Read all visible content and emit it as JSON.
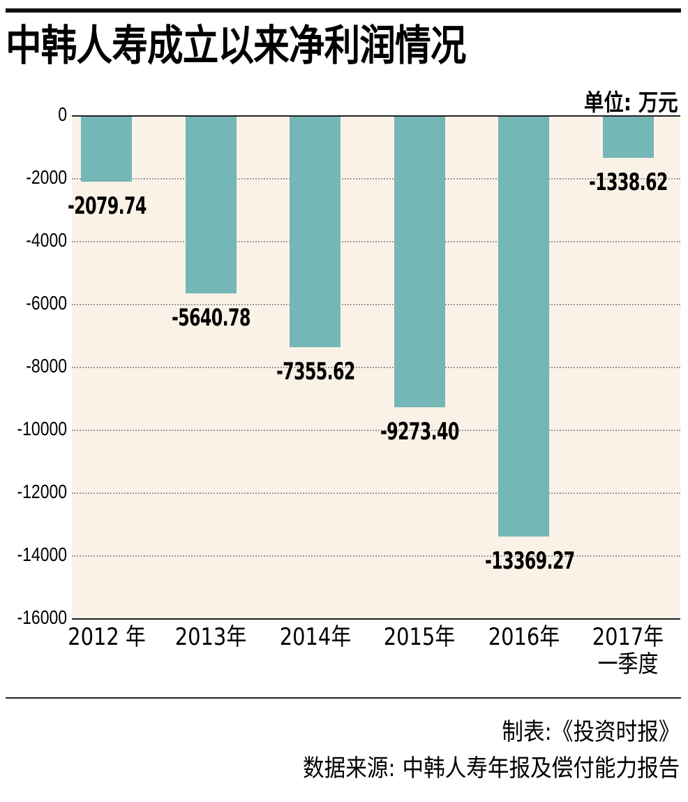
{
  "title": "中韩人寿成立以来净利润情况",
  "unit": "单位: 万元",
  "chart_data": {
    "type": "bar",
    "title": "中韩人寿成立以来净利润情况",
    "ylabel": "单位: 万元",
    "xlabel": "",
    "categories": [
      "2012 年",
      "2013年",
      "2014年",
      "2015年",
      "2016年",
      "2017年一季度"
    ],
    "values": [
      -2079.74,
      -5640.78,
      -7355.62,
      -9273.4,
      -13369.27,
      -1338.62
    ],
    "value_labels": [
      "-2079.74",
      "-5640.78",
      "-7355.62",
      "-9273.40",
      "-13369.27",
      "-1338.62"
    ],
    "ylim": [
      -16000,
      0
    ],
    "yticks": [
      0,
      -2000,
      -4000,
      -6000,
      -8000,
      -10000,
      -12000,
      -14000,
      -16000
    ],
    "grid": "horizontal dotted",
    "legend": "none",
    "bar_color": "#75b7b6",
    "background_color": "#fbf2e7"
  },
  "yticks": [
    "0",
    "-2000",
    "-4000",
    "-6000",
    "-8000",
    "-10000",
    "-12000",
    "-14000",
    "-16000"
  ],
  "xlabels": [
    {
      "line1": "2012 年",
      "line2": ""
    },
    {
      "line1": "2013年",
      "line2": ""
    },
    {
      "line1": "2014年",
      "line2": ""
    },
    {
      "line1": "2015年",
      "line2": ""
    },
    {
      "line1": "2016年",
      "line2": ""
    },
    {
      "line1": "2017年",
      "line2": "一季度"
    }
  ],
  "footer": {
    "producer": "制表:《投资时报》",
    "source": "数据来源: 中韩人寿年报及偿付能力报告"
  }
}
